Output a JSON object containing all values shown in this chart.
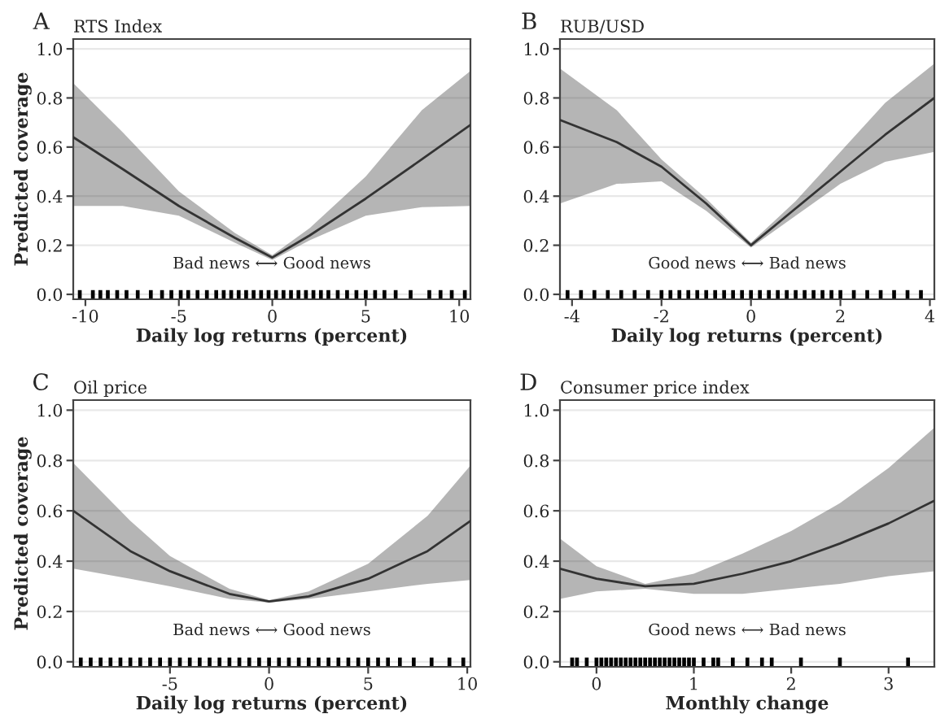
{
  "chart_data": [
    {
      "type": "line",
      "title": "RTS Index",
      "ylabel": "Predicted coverage",
      "xlabel": "Daily log returns (percent)",
      "annotations": [
        "A",
        "Bad news ⟷ Good news"
      ],
      "xlim": [
        -10.65,
        10.6
      ],
      "xticks": [
        -10,
        -5,
        0,
        5,
        10
      ],
      "ylim": [
        -0.02,
        1.04
      ],
      "yticks": [
        {
          "value": 0,
          "label": "0.0"
        },
        {
          "value": 0.2,
          "label": "0.2"
        },
        {
          "value": 0.4,
          "label": "0.4"
        },
        {
          "value": 0.6,
          "label": "0.6"
        },
        {
          "value": 0.8,
          "label": "0.8"
        },
        {
          "value": 1,
          "label": "1.0"
        }
      ],
      "grid": "y",
      "legend": false,
      "series": [
        {
          "color": "#333333",
          "x": [
            -10.65,
            -8,
            -5,
            -2,
            0,
            2,
            5,
            8,
            10.6
          ],
          "values": [
            0.64,
            0.51,
            0.36,
            0.23,
            0.15,
            0.24,
            0.39,
            0.55,
            0.69
          ],
          "lower": [
            0.36,
            0.36,
            0.32,
            0.21,
            0.14,
            0.22,
            0.32,
            0.355,
            0.36
          ],
          "upper": [
            0.86,
            0.66,
            0.42,
            0.25,
            0.16,
            0.27,
            0.48,
            0.75,
            0.91
          ]
        },
        {
          "type": "scatter",
          "color": "#000000",
          "x": [
            -10.3,
            -9.6,
            -9.2,
            -8.8,
            -8.3,
            -7.8,
            -7.2,
            -6.5,
            -5.9,
            -5.4,
            -4.9,
            -4.5,
            -4.0,
            -3.5,
            -3.0,
            -2.6,
            -2.2,
            -1.8,
            -1.4,
            -1.0,
            -0.6,
            -0.2,
            0.2,
            0.6,
            1.0,
            1.4,
            1.8,
            2.2,
            2.6,
            3.0,
            3.5,
            4.0,
            4.5,
            5.0,
            5.5,
            6.0,
            6.6,
            7.4,
            8.4,
            9.0,
            9.6,
            10.3
          ],
          "values": [
            0,
            0,
            0,
            0,
            0,
            0,
            0,
            0,
            0,
            0,
            0,
            0,
            0,
            0,
            0,
            0,
            0,
            0,
            0,
            0,
            0,
            0,
            0,
            0,
            0,
            0,
            0,
            0,
            0,
            0,
            0,
            0,
            0,
            0,
            0,
            0,
            0,
            0,
            0,
            0,
            0,
            0
          ]
        }
      ]
    },
    {
      "type": "line",
      "title": "RUB/USD",
      "xlabel": "Daily log returns (percent)",
      "annotations": [
        "B",
        "Good news ⟷ Bad news"
      ],
      "xlim": [
        -4.27,
        4.1
      ],
      "xticks": [
        -4,
        -2,
        0,
        2,
        4
      ],
      "ylim": [
        -0.02,
        1.04
      ],
      "yticks": [
        {
          "value": 0,
          "label": "0.0"
        },
        {
          "value": 0.2,
          "label": "0.2"
        },
        {
          "value": 0.4,
          "label": "0.4"
        },
        {
          "value": 0.6,
          "label": "0.6"
        },
        {
          "value": 0.8,
          "label": "0.8"
        },
        {
          "value": 1,
          "label": "1.0"
        }
      ],
      "grid": "y",
      "legend": false,
      "series": [
        {
          "color": "#333333",
          "x": [
            -4.27,
            -3,
            -2,
            -1,
            0,
            1,
            2,
            3,
            4.1
          ],
          "values": [
            0.71,
            0.62,
            0.52,
            0.37,
            0.2,
            0.35,
            0.5,
            0.65,
            0.8
          ],
          "lower": [
            0.37,
            0.45,
            0.46,
            0.34,
            0.19,
            0.32,
            0.45,
            0.54,
            0.58
          ],
          "upper": [
            0.92,
            0.75,
            0.55,
            0.39,
            0.21,
            0.38,
            0.58,
            0.78,
            0.94
          ]
        },
        {
          "type": "scatter",
          "color": "#000000",
          "x": [
            -4.1,
            -3.8,
            -3.5,
            -3.2,
            -2.9,
            -2.6,
            -2.3,
            -2.0,
            -1.8,
            -1.6,
            -1.4,
            -1.2,
            -1.0,
            -0.8,
            -0.6,
            -0.4,
            -0.2,
            0.0,
            0.2,
            0.4,
            0.6,
            0.8,
            1.0,
            1.2,
            1.4,
            1.6,
            1.8,
            2.0,
            2.3,
            2.6,
            2.9,
            3.2,
            3.5,
            3.8
          ],
          "values": [
            0,
            0,
            0,
            0,
            0,
            0,
            0,
            0,
            0,
            0,
            0,
            0,
            0,
            0,
            0,
            0,
            0,
            0,
            0,
            0,
            0,
            0,
            0,
            0,
            0,
            0,
            0,
            0,
            0,
            0,
            0,
            0,
            0,
            0
          ]
        }
      ]
    },
    {
      "type": "line",
      "title": "Oil price",
      "ylabel": "Predicted coverage",
      "xlabel": "Daily log returns (percent)",
      "annotations": [
        "C",
        "Bad news ⟷ Good news"
      ],
      "xlim": [
        -9.88,
        10.16
      ],
      "xticks": [
        -5,
        0,
        5,
        10
      ],
      "ylim": [
        -0.02,
        1.04
      ],
      "yticks": [
        {
          "value": 0,
          "label": "0.0"
        },
        {
          "value": 0.2,
          "label": "0.2"
        },
        {
          "value": 0.4,
          "label": "0.4"
        },
        {
          "value": 0.6,
          "label": "0.6"
        },
        {
          "value": 0.8,
          "label": "0.8"
        },
        {
          "value": 1,
          "label": "1.0"
        }
      ],
      "grid": "y",
      "legend": false,
      "series": [
        {
          "color": "#333333",
          "x": [
            -9.88,
            -7,
            -5,
            -2,
            0,
            2,
            5,
            8,
            10.16
          ],
          "values": [
            0.6,
            0.44,
            0.36,
            0.27,
            0.24,
            0.26,
            0.33,
            0.44,
            0.56
          ],
          "lower": [
            0.37,
            0.33,
            0.3,
            0.25,
            0.235,
            0.25,
            0.28,
            0.31,
            0.325
          ],
          "upper": [
            0.79,
            0.56,
            0.42,
            0.29,
            0.245,
            0.28,
            0.39,
            0.58,
            0.78
          ]
        },
        {
          "type": "scatter",
          "color": "#000000",
          "x": [
            -9.5,
            -9.0,
            -8.5,
            -8.0,
            -7.5,
            -7.0,
            -6.5,
            -6.0,
            -5.5,
            -5.0,
            -4.5,
            -4.0,
            -3.5,
            -3.0,
            -2.5,
            -2.0,
            -1.5,
            -1.0,
            -0.5,
            0.0,
            0.5,
            1.0,
            1.5,
            2.0,
            2.5,
            3.0,
            3.5,
            4.0,
            4.5,
            5.0,
            5.5,
            6.0,
            6.6,
            7.3,
            8.2,
            9.1,
            9.8
          ],
          "values": [
            0,
            0,
            0,
            0,
            0,
            0,
            0,
            0,
            0,
            0,
            0,
            0,
            0,
            0,
            0,
            0,
            0,
            0,
            0,
            0,
            0,
            0,
            0,
            0,
            0,
            0,
            0,
            0,
            0,
            0,
            0,
            0,
            0,
            0,
            0,
            0,
            0
          ]
        }
      ]
    },
    {
      "type": "line",
      "title": "Consumer price index",
      "xlabel": "Monthly change",
      "annotations": [
        "D",
        "Good news ⟷ Bad news"
      ],
      "xlim": [
        -0.375,
        3.47
      ],
      "xticks": [
        0,
        1,
        2,
        3
      ],
      "ylim": [
        -0.02,
        1.04
      ],
      "yticks": [
        {
          "value": 0,
          "label": "0.0"
        },
        {
          "value": 0.2,
          "label": "0.2"
        },
        {
          "value": 0.4,
          "label": "0.4"
        },
        {
          "value": 0.6,
          "label": "0.6"
        },
        {
          "value": 0.8,
          "label": "0.8"
        },
        {
          "value": 1,
          "label": "1.0"
        }
      ],
      "grid": "y",
      "legend": false,
      "series": [
        {
          "color": "#333333",
          "x": [
            -0.375,
            0,
            0.5,
            1,
            1.5,
            2,
            2.5,
            3,
            3.47
          ],
          "values": [
            0.37,
            0.33,
            0.3,
            0.31,
            0.35,
            0.4,
            0.47,
            0.55,
            0.64
          ],
          "lower": [
            0.25,
            0.28,
            0.29,
            0.27,
            0.27,
            0.29,
            0.31,
            0.34,
            0.36
          ],
          "upper": [
            0.49,
            0.38,
            0.31,
            0.35,
            0.43,
            0.52,
            0.63,
            0.77,
            0.93
          ]
        },
        {
          "type": "scatter",
          "color": "#000000",
          "x": [
            -0.25,
            -0.2,
            -0.1,
            0.0,
            0.05,
            0.1,
            0.15,
            0.2,
            0.25,
            0.3,
            0.35,
            0.4,
            0.45,
            0.5,
            0.55,
            0.6,
            0.65,
            0.7,
            0.75,
            0.8,
            0.85,
            0.9,
            0.95,
            1.0,
            1.1,
            1.2,
            1.25,
            1.4,
            1.55,
            1.7,
            1.8,
            2.1,
            2.5,
            3.2
          ],
          "values": [
            0,
            0,
            0,
            0,
            0,
            0,
            0,
            0,
            0,
            0,
            0,
            0,
            0,
            0,
            0,
            0,
            0,
            0,
            0,
            0,
            0,
            0,
            0,
            0,
            0,
            0,
            0,
            0,
            0,
            0,
            0,
            0,
            0,
            0
          ]
        }
      ]
    }
  ]
}
